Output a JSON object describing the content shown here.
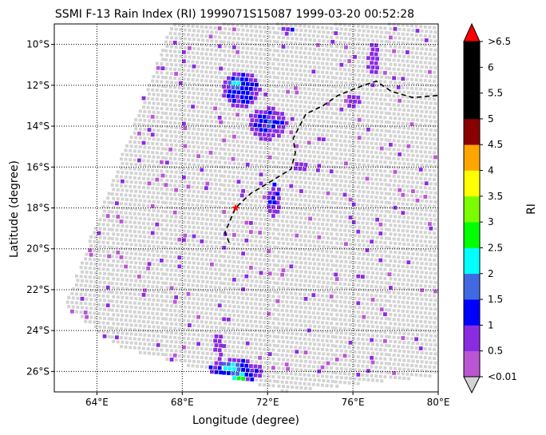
{
  "chart_data": {
    "type": "heatmap",
    "title": "SSMI F-13 Rain Index (RI) 1999071S15087 1999-03-20 00:52:28",
    "xlabel": "Longitude (degree)",
    "ylabel": "Latitude (degree)",
    "xlim": [
      62,
      80
    ],
    "ylim": [
      -27,
      -9
    ],
    "x_ticks": [
      {
        "value": 64,
        "label": "64°E"
      },
      {
        "value": 68,
        "label": "68°E"
      },
      {
        "value": 72,
        "label": "72°E"
      },
      {
        "value": 76,
        "label": "76°E"
      },
      {
        "value": 80,
        "label": "80°E"
      }
    ],
    "y_ticks": [
      {
        "value": -10,
        "label": "10°S"
      },
      {
        "value": -12,
        "label": "12°S"
      },
      {
        "value": -14,
        "label": "14°S"
      },
      {
        "value": -16,
        "label": "16°S"
      },
      {
        "value": -18,
        "label": "18°S"
      },
      {
        "value": -20,
        "label": "20°S"
      },
      {
        "value": -22,
        "label": "22°S"
      },
      {
        "value": -24,
        "label": "24°S"
      },
      {
        "value": -26,
        "label": "26°S"
      }
    ],
    "grid": true,
    "colorbar": {
      "label": "RI",
      "ticks": [
        "<0.01",
        "0.5",
        "1",
        "1.5",
        "2",
        "2.5",
        "3",
        "3.5",
        "4",
        "4.5",
        "5",
        "5.5",
        "6",
        ">6.5"
      ],
      "extend_low_color": "#d3d3d3",
      "extend_high_color": "#ff0000",
      "bins": [
        {
          "from": 0.01,
          "to": 0.5,
          "color": "#ba55d3"
        },
        {
          "from": 0.5,
          "to": 1,
          "color": "#8a2be2"
        },
        {
          "from": 1,
          "to": 1.5,
          "color": "#0000ff"
        },
        {
          "from": 1.5,
          "to": 2,
          "color": "#4169e1"
        },
        {
          "from": 2,
          "to": 2.5,
          "color": "#00ffff"
        },
        {
          "from": 2.5,
          "to": 3,
          "color": "#00ff00"
        },
        {
          "from": 3,
          "to": 3.5,
          "color": "#7cfc00"
        },
        {
          "from": 3.5,
          "to": 4,
          "color": "#ffff00"
        },
        {
          "from": 4,
          "to": 4.5,
          "color": "#ffa500"
        },
        {
          "from": 4.5,
          "to": 5,
          "color": "#8b0000"
        },
        {
          "from": 5,
          "to": 5.5,
          "color": "#000000"
        },
        {
          "from": 5.5,
          "to": 6,
          "color": "#000000"
        },
        {
          "from": 6,
          "to": 6.5,
          "color": "#000000"
        }
      ]
    },
    "swath": {
      "color": "#d3d3d3",
      "corners": [
        {
          "lon": 67.5,
          "lat": -9.0
        },
        {
          "lon": 80.0,
          "lat": -9.0
        },
        {
          "lon": 80.0,
          "lat": -26.2
        },
        {
          "lon": 72.8,
          "lat": -27.0
        },
        {
          "lon": 65.0,
          "lat": -24.8
        },
        {
          "lon": 62.5,
          "lat": -22.8
        }
      ]
    },
    "rain_clusters": [
      {
        "lon": 70.8,
        "lat": -12.2,
        "rx": 0.9,
        "ry": 0.9,
        "value": 1.2
      },
      {
        "lon": 70.5,
        "lat": -11.9,
        "rx": 0.3,
        "ry": 0.25,
        "value": 2.2
      },
      {
        "lon": 72.0,
        "lat": -13.9,
        "rx": 0.9,
        "ry": 0.8,
        "value": 1.1
      },
      {
        "lon": 72.1,
        "lat": -13.9,
        "rx": 0.25,
        "ry": 0.2,
        "value": 2.1
      },
      {
        "lon": 72.3,
        "lat": -17.6,
        "rx": 0.3,
        "ry": 0.9,
        "value": 1.1
      },
      {
        "lon": 73.6,
        "lat": -16.0,
        "rx": 0.3,
        "ry": 0.3,
        "value": 0.9
      },
      {
        "lon": 70.5,
        "lat": -26.0,
        "rx": 1.3,
        "ry": 0.6,
        "value": 1.3
      },
      {
        "lon": 70.3,
        "lat": -25.8,
        "rx": 0.45,
        "ry": 0.35,
        "value": 2.2
      },
      {
        "lon": 70.7,
        "lat": -26.3,
        "rx": 0.35,
        "ry": 0.25,
        "value": 2.7
      },
      {
        "lon": 77.0,
        "lat": -10.7,
        "rx": 0.3,
        "ry": 0.8,
        "value": 0.9
      },
      {
        "lon": 73.0,
        "lat": -9.3,
        "rx": 0.3,
        "ry": 0.2,
        "value": 1.1
      },
      {
        "lon": 76.0,
        "lat": -12.8,
        "rx": 0.35,
        "ry": 0.3,
        "value": 0.9
      },
      {
        "lon": 69.7,
        "lat": -24.6,
        "rx": 0.3,
        "ry": 0.5,
        "value": 0.8
      }
    ],
    "storm_track": [
      {
        "lon": 70.2,
        "lat": -19.7
      },
      {
        "lon": 70.0,
        "lat": -19.2
      },
      {
        "lon": 70.5,
        "lat": -18.0
      },
      {
        "lon": 71.2,
        "lat": -17.3
      },
      {
        "lon": 72.0,
        "lat": -16.8
      },
      {
        "lon": 73.1,
        "lat": -16.1
      },
      {
        "lon": 73.3,
        "lat": -15.3
      },
      {
        "lon": 73.2,
        "lat": -14.6
      },
      {
        "lon": 73.5,
        "lat": -14.0
      },
      {
        "lon": 73.8,
        "lat": -13.4
      },
      {
        "lon": 74.6,
        "lat": -13.0
      },
      {
        "lon": 75.3,
        "lat": -12.5
      },
      {
        "lon": 76.5,
        "lat": -12.0
      },
      {
        "lon": 77.1,
        "lat": -11.8
      },
      {
        "lon": 77.8,
        "lat": -12.3
      },
      {
        "lon": 78.8,
        "lat": -12.6
      },
      {
        "lon": 80.0,
        "lat": -12.5
      }
    ],
    "storm_center": {
      "lon": 70.5,
      "lat": -18.0
    }
  }
}
